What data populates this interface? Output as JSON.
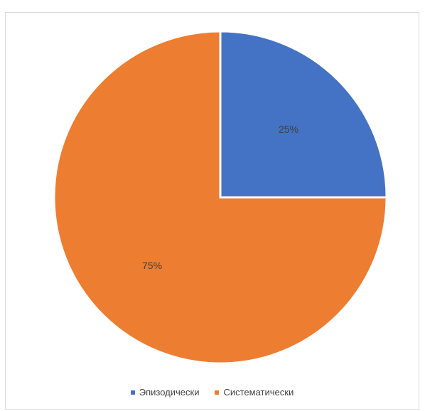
{
  "chart_data": {
    "type": "pie",
    "title": "",
    "categories": [
      "Эпизодически",
      "Систематически"
    ],
    "values": [
      25,
      75
    ],
    "data_labels": [
      "25%",
      "75%"
    ],
    "colors": [
      "#4472c4",
      "#ed7d31"
    ],
    "start_angle_deg": 0,
    "direction": "clockwise",
    "legend_position": "bottom"
  },
  "legend": {
    "items": [
      {
        "label": "Эпизодически",
        "color": "#4472c4"
      },
      {
        "label": "Систематически",
        "color": "#ed7d31"
      }
    ]
  }
}
